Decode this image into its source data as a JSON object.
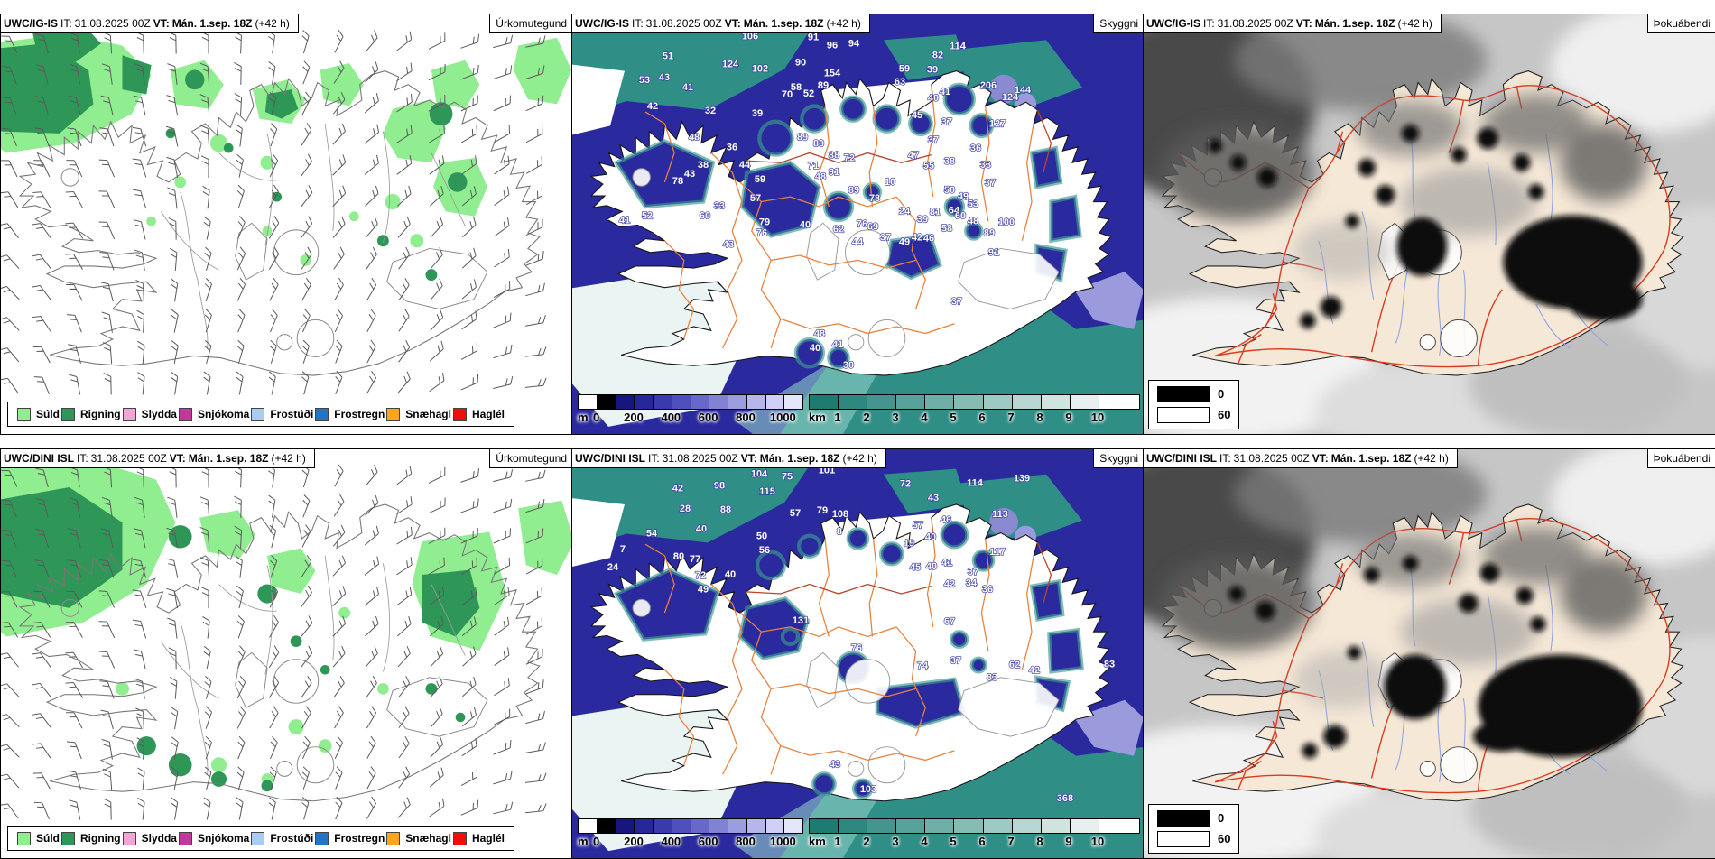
{
  "run": {
    "it_label": "IT:",
    "it": "31.08.2025 00Z",
    "vt_label": "VT:",
    "vt": "Mán. 1.sep. 18Z",
    "lead": "(+42 h)"
  },
  "panels": [
    {
      "model": "UWC/IG-IS",
      "product": "Úrkomutegund"
    },
    {
      "model": "UWC/IG-IS",
      "product": "Skyggni"
    },
    {
      "model": "UWC/IG-IS",
      "product": "Þokuábendi"
    },
    {
      "model": "UWC/DINI ISL",
      "product": "Úrkomutegund"
    },
    {
      "model": "UWC/DINI ISL",
      "product": "Skyggni"
    },
    {
      "model": "UWC/DINI ISL",
      "product": "Þokuábendi"
    }
  ],
  "precip_legend": [
    {
      "label": "Súld",
      "color": "#90EE90"
    },
    {
      "label": "Rigning",
      "color": "#2E9758"
    },
    {
      "label": "Slydda",
      "color": "#F2A6D8"
    },
    {
      "label": "Snjókoma",
      "color": "#C2399B"
    },
    {
      "label": "Frostúði",
      "color": "#A9CCF2"
    },
    {
      "label": "Frostregn",
      "color": "#2574C4"
    },
    {
      "label": "Snæhagl",
      "color": "#FFA519"
    },
    {
      "label": "Haglél",
      "color": "#F20D0D"
    }
  ],
  "visibility_scale_m": {
    "unit": "m",
    "ticks": [
      "0",
      "200",
      "400",
      "600",
      "800",
      "1000"
    ],
    "colors": [
      "#FFFFFF",
      "#000000",
      "#16167E",
      "#26269A",
      "#3A3AAC",
      "#5050BC",
      "#6868C8",
      "#8282D4",
      "#9C9CE0",
      "#B6B6EC",
      "#D0D0F6",
      "#E4E4FB"
    ]
  },
  "visibility_scale_km": {
    "unit": "km",
    "ticks": [
      "1",
      "2",
      "3",
      "4",
      "5",
      "6",
      "7",
      "8",
      "9",
      "10"
    ],
    "colors": [
      "#1E7B72",
      "#2F887F",
      "#43958D",
      "#57A29A",
      "#6FAFA7",
      "#87BCB5",
      "#9FC9C3",
      "#B7D6D1",
      "#CFE3DF",
      "#E7F0EE",
      "#FFFFFF"
    ]
  },
  "fog_legend": [
    {
      "label": "0",
      "color": "#000000"
    },
    {
      "label": "60",
      "color": "#FFFFFF"
    }
  ],
  "map_colors": {
    "precip_light_green": "#90EE90",
    "precip_dark_green": "#2E9758",
    "visibility_navy": "#2A2A9E",
    "visibility_teal": "#2F8E86",
    "visibility_purple": "#9A9ADC",
    "boundary_orange": "#E8823C",
    "fog_land_beige": "#F5E8D7",
    "road_red": "#DC3B20",
    "river_blue": "#90A4E4"
  },
  "chart_data": [
    {
      "type": "heatmap",
      "title": "UWC/IG-IS Skyggni VT: Mán. 1.sep. 18Z (+42 h)",
      "units": "plotted visibility values",
      "values": [
        [
          197,
          27,
          106
        ],
        [
          267,
          28,
          91
        ],
        [
          288,
          37,
          96
        ],
        [
          312,
          35,
          94
        ],
        [
          427,
          38,
          114
        ],
        [
          405,
          48,
          82
        ],
        [
          175,
          58,
          124
        ],
        [
          208,
          63,
          102
        ],
        [
          253,
          56,
          90
        ],
        [
          288,
          68,
          154
        ],
        [
          368,
          63,
          59
        ],
        [
          399,
          64,
          39
        ],
        [
          461,
          81,
          206
        ],
        [
          485,
          94,
          124
        ],
        [
          499,
          86,
          144
        ],
        [
          363,
          77,
          63
        ],
        [
          106,
          49,
          51
        ],
        [
          102,
          72,
          43
        ],
        [
          80,
          75,
          53
        ],
        [
          128,
          83,
          41
        ],
        [
          89,
          104,
          42
        ],
        [
          153,
          109,
          32
        ],
        [
          205,
          112,
          39
        ],
        [
          248,
          83,
          58
        ],
        [
          238,
          91,
          70
        ],
        [
          262,
          90,
          52
        ],
        [
          278,
          81,
          89
        ],
        [
          400,
          95,
          40
        ],
        [
          413,
          88,
          41
        ],
        [
          382,
          114,
          45
        ],
        [
          415,
          121,
          37
        ],
        [
          471,
          123,
          127
        ],
        [
          135,
          138,
          48
        ],
        [
          177,
          149,
          36
        ],
        [
          191,
          168,
          44
        ],
        [
          145,
          168,
          38
        ],
        [
          130,
          178,
          43
        ],
        [
          117,
          186,
          78
        ],
        [
          208,
          184,
          59
        ],
        [
          203,
          205,
          57
        ],
        [
          163,
          213,
          33
        ],
        [
          147,
          224,
          60
        ],
        [
          83,
          224,
          52
        ],
        [
          58,
          229,
          41
        ],
        [
          213,
          231,
          79
        ],
        [
          210,
          243,
          76
        ],
        [
          173,
          255,
          43
        ],
        [
          258,
          234,
          40
        ],
        [
          295,
          239,
          62
        ],
        [
          321,
          233,
          76
        ],
        [
          333,
          236,
          69
        ],
        [
          347,
          248,
          37
        ],
        [
          316,
          253,
          44
        ],
        [
          368,
          253,
          49
        ],
        [
          382,
          248,
          42
        ],
        [
          395,
          249,
          46
        ],
        [
          388,
          228,
          39
        ],
        [
          402,
          220,
          81
        ],
        [
          368,
          219,
          24
        ],
        [
          312,
          196,
          89
        ],
        [
          335,
          205,
          78
        ],
        [
          352,
          187,
          10
        ],
        [
          267,
          169,
          71
        ],
        [
          275,
          181,
          48
        ],
        [
          290,
          158,
          88
        ],
        [
          307,
          161,
          72
        ],
        [
          290,
          176,
          91
        ],
        [
          273,
          145,
          80
        ],
        [
          255,
          138,
          89
        ],
        [
          378,
          158,
          47
        ],
        [
          395,
          169,
          55
        ],
        [
          400,
          141,
          37
        ],
        [
          418,
          164,
          38
        ],
        [
          447,
          150,
          36
        ],
        [
          458,
          168,
          33
        ],
        [
          463,
          188,
          37
        ],
        [
          418,
          196,
          50
        ],
        [
          433,
          203,
          49
        ],
        [
          444,
          211,
          53
        ],
        [
          423,
          218,
          64
        ],
        [
          430,
          224,
          60
        ],
        [
          444,
          230,
          48
        ],
        [
          415,
          238,
          58
        ],
        [
          481,
          231,
          100
        ],
        [
          462,
          243,
          89
        ],
        [
          467,
          264,
          91
        ],
        [
          274,
          353,
          48
        ],
        [
          269,
          369,
          40
        ],
        [
          294,
          365,
          41
        ],
        [
          306,
          388,
          30
        ],
        [
          426,
          318,
          37
        ]
      ]
    },
    {
      "type": "heatmap",
      "title": "UWC/DINI ISL Skyggni VT: Mán. 1.sep. 18Z (+42 h)",
      "units": "plotted visibility values",
      "values": [
        [
          207,
          31,
          104
        ],
        [
          238,
          34,
          75
        ],
        [
          282,
          27,
          101
        ],
        [
          163,
          44,
          98
        ],
        [
          216,
          51,
          115
        ],
        [
          170,
          71,
          88
        ],
        [
          117,
          47,
          42
        ],
        [
          125,
          70,
          28
        ],
        [
          143,
          93,
          40
        ],
        [
          210,
          101,
          50
        ],
        [
          213,
          117,
          56
        ],
        [
          88,
          98,
          54
        ],
        [
          118,
          124,
          80
        ],
        [
          136,
          127,
          77
        ],
        [
          142,
          145,
          72
        ],
        [
          145,
          161,
          49
        ],
        [
          175,
          144,
          40
        ],
        [
          498,
          36,
          139
        ],
        [
          446,
          41,
          114
        ],
        [
          474,
          76,
          113
        ],
        [
          369,
          42,
          72
        ],
        [
          400,
          58,
          43
        ],
        [
          414,
          83,
          46
        ],
        [
          383,
          89,
          57
        ],
        [
          397,
          102,
          40
        ],
        [
          373,
          109,
          19
        ],
        [
          471,
          119,
          117
        ],
        [
          380,
          136,
          45
        ],
        [
          398,
          135,
          40
        ],
        [
          415,
          131,
          41
        ],
        [
          444,
          141,
          37
        ],
        [
          442,
          154,
          34
        ],
        [
          418,
          155,
          42
        ],
        [
          460,
          161,
          36
        ],
        [
          297,
          76,
          108
        ],
        [
          277,
          72,
          79
        ],
        [
          247,
          75,
          57
        ],
        [
          296,
          96,
          8
        ],
        [
          253,
          196,
          131
        ],
        [
          315,
          227,
          76
        ],
        [
          418,
          197,
          67
        ],
        [
          388,
          247,
          74
        ],
        [
          425,
          241,
          37
        ],
        [
          490,
          246,
          62
        ],
        [
          465,
          260,
          83
        ],
        [
          512,
          252,
          42
        ],
        [
          595,
          245,
          83
        ],
        [
          546,
          396,
          368
        ],
        [
          291,
          358,
          43
        ],
        [
          328,
          386,
          103
        ],
        [
          56,
          116,
          7
        ],
        [
          45,
          136,
          24
        ]
      ]
    }
  ]
}
